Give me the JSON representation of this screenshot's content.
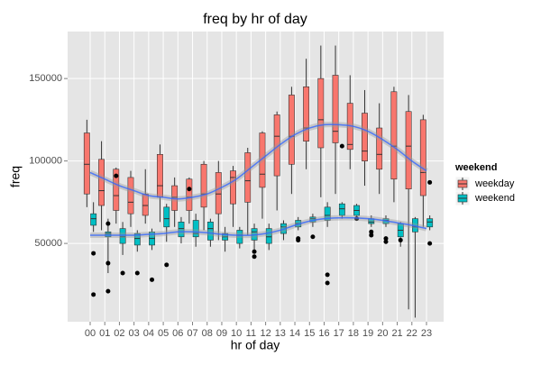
{
  "chart_data": {
    "type": "boxplot",
    "title": "freq by hr of day",
    "x_label": "hr of day",
    "y_label": "freq",
    "legend_title": "weekend",
    "categories": [
      "00",
      "01",
      "02",
      "03",
      "04",
      "05",
      "06",
      "07",
      "08",
      "09",
      "10",
      "11",
      "12",
      "13",
      "14",
      "15",
      "16",
      "17",
      "18",
      "19",
      "20",
      "21",
      "22",
      "23"
    ],
    "ylim": [
      2500,
      178500
    ],
    "yticks": [
      50000,
      100000,
      150000
    ],
    "grid": true,
    "smooth_color": "#3366FF",
    "series": [
      {
        "name": "weekday",
        "color": "#F8766D",
        "whisker_low": [
          72000,
          58000,
          62000,
          60000,
          62000,
          63000,
          60000,
          62000,
          58000,
          52000,
          60000,
          55000,
          65000,
          70000,
          80000,
          95000,
          78000,
          80000,
          95000,
          85000,
          80000,
          75000,
          10000,
          60000
        ],
        "q1": [
          80000,
          73000,
          70000,
          68000,
          67000,
          78000,
          70000,
          70000,
          72000,
          68000,
          74000,
          75000,
          84000,
          91000,
          98000,
          112000,
          108000,
          111000,
          107000,
          100000,
          95000,
          89000,
          83000,
          79000
        ],
        "median": [
          98000,
          82000,
          79000,
          75000,
          73000,
          85000,
          78000,
          78000,
          80000,
          80000,
          90000,
          88000,
          92000,
          115000,
          115000,
          120000,
          125000,
          118000,
          110000,
          106000,
          104000,
          109000,
          109000,
          93000
        ],
        "q3": [
          117000,
          101000,
          95000,
          90000,
          80000,
          104000,
          85000,
          89000,
          98000,
          93000,
          94000,
          105000,
          117000,
          128000,
          140000,
          145000,
          150000,
          152000,
          135000,
          129000,
          120000,
          142000,
          130000,
          125000
        ],
        "whisker_high": [
          125000,
          112000,
          96000,
          94000,
          95000,
          110000,
          90000,
          90000,
          100000,
          100000,
          97000,
          108000,
          118000,
          130000,
          145000,
          162000,
          170000,
          170000,
          152000,
          143000,
          135000,
          145000,
          140000,
          128000
        ],
        "outliers": [
          [],
          [],
          [
            91000
          ],
          [],
          [],
          [],
          [],
          [
            83000
          ],
          [],
          [],
          [],
          [],
          [],
          [],
          [],
          [],
          [],
          [],
          [],
          [],
          [],
          [],
          [],
          []
        ],
        "smooth": [
          93000,
          89000,
          85000,
          82000,
          79000,
          78000,
          77000,
          78000,
          80000,
          84000,
          89000,
          96000,
          103000,
          110000,
          116000,
          120000,
          122000,
          122000,
          121000,
          118000,
          113000,
          107000,
          100000,
          94000
        ]
      },
      {
        "name": "weekend",
        "color": "#00BFC4",
        "whisker_low": [
          57000,
          32000,
          43000,
          45000,
          46000,
          51000,
          50000,
          48000,
          48000,
          45000,
          47000,
          46000,
          46000,
          52000,
          58000,
          60000,
          60000,
          65000,
          66000,
          60000,
          60000,
          48000,
          5000,
          58000
        ],
        "q1": [
          61000,
          54000,
          50000,
          49000,
          49000,
          60000,
          54000,
          54000,
          52000,
          52000,
          50000,
          52000,
          50000,
          56000,
          60000,
          63000,
          64000,
          67000,
          67000,
          62000,
          62000,
          54000,
          57000,
          60000
        ],
        "median": [
          65000,
          56000,
          54000,
          53000,
          53000,
          65000,
          59000,
          56000,
          59000,
          54000,
          55000,
          57000,
          54000,
          60000,
          62000,
          65000,
          67000,
          71000,
          70000,
          63000,
          64000,
          58000,
          60000,
          63000
        ],
        "q3": [
          68000,
          57000,
          59000,
          56000,
          57000,
          72000,
          63000,
          64000,
          63000,
          56000,
          58000,
          59000,
          59000,
          62000,
          64000,
          66000,
          72000,
          74000,
          73000,
          65000,
          65000,
          62000,
          65000,
          65000
        ],
        "whisker_high": [
          75000,
          65000,
          63000,
          58000,
          59000,
          74000,
          66000,
          68000,
          65000,
          60000,
          60000,
          62000,
          62000,
          64000,
          66000,
          68000,
          75000,
          75000,
          74000,
          67000,
          67000,
          63000,
          66000,
          67000
        ],
        "outliers": [
          [
            44000,
            19000
          ],
          [
            62000,
            38000,
            21000
          ],
          [
            32000
          ],
          [
            32000
          ],
          [
            28000
          ],
          [
            37000
          ],
          [],
          [],
          [],
          [],
          [],
          [
            45000,
            42000
          ],
          [],
          [],
          [
            53000,
            52000
          ],
          [
            54000
          ],
          [
            31000,
            26000
          ],
          [
            109000
          ],
          [
            65000
          ],
          [
            57000,
            55000
          ],
          [
            53000,
            51000
          ],
          [
            52000
          ],
          [],
          [
            87000,
            50000
          ]
        ],
        "smooth": [
          55000,
          55000,
          55000,
          55000,
          55500,
          56000,
          57000,
          57000,
          56500,
          55500,
          55000,
          55000,
          56000,
          58000,
          61000,
          63500,
          65000,
          65500,
          65500,
          65000,
          64000,
          62500,
          61000,
          59000
        ]
      }
    ]
  }
}
